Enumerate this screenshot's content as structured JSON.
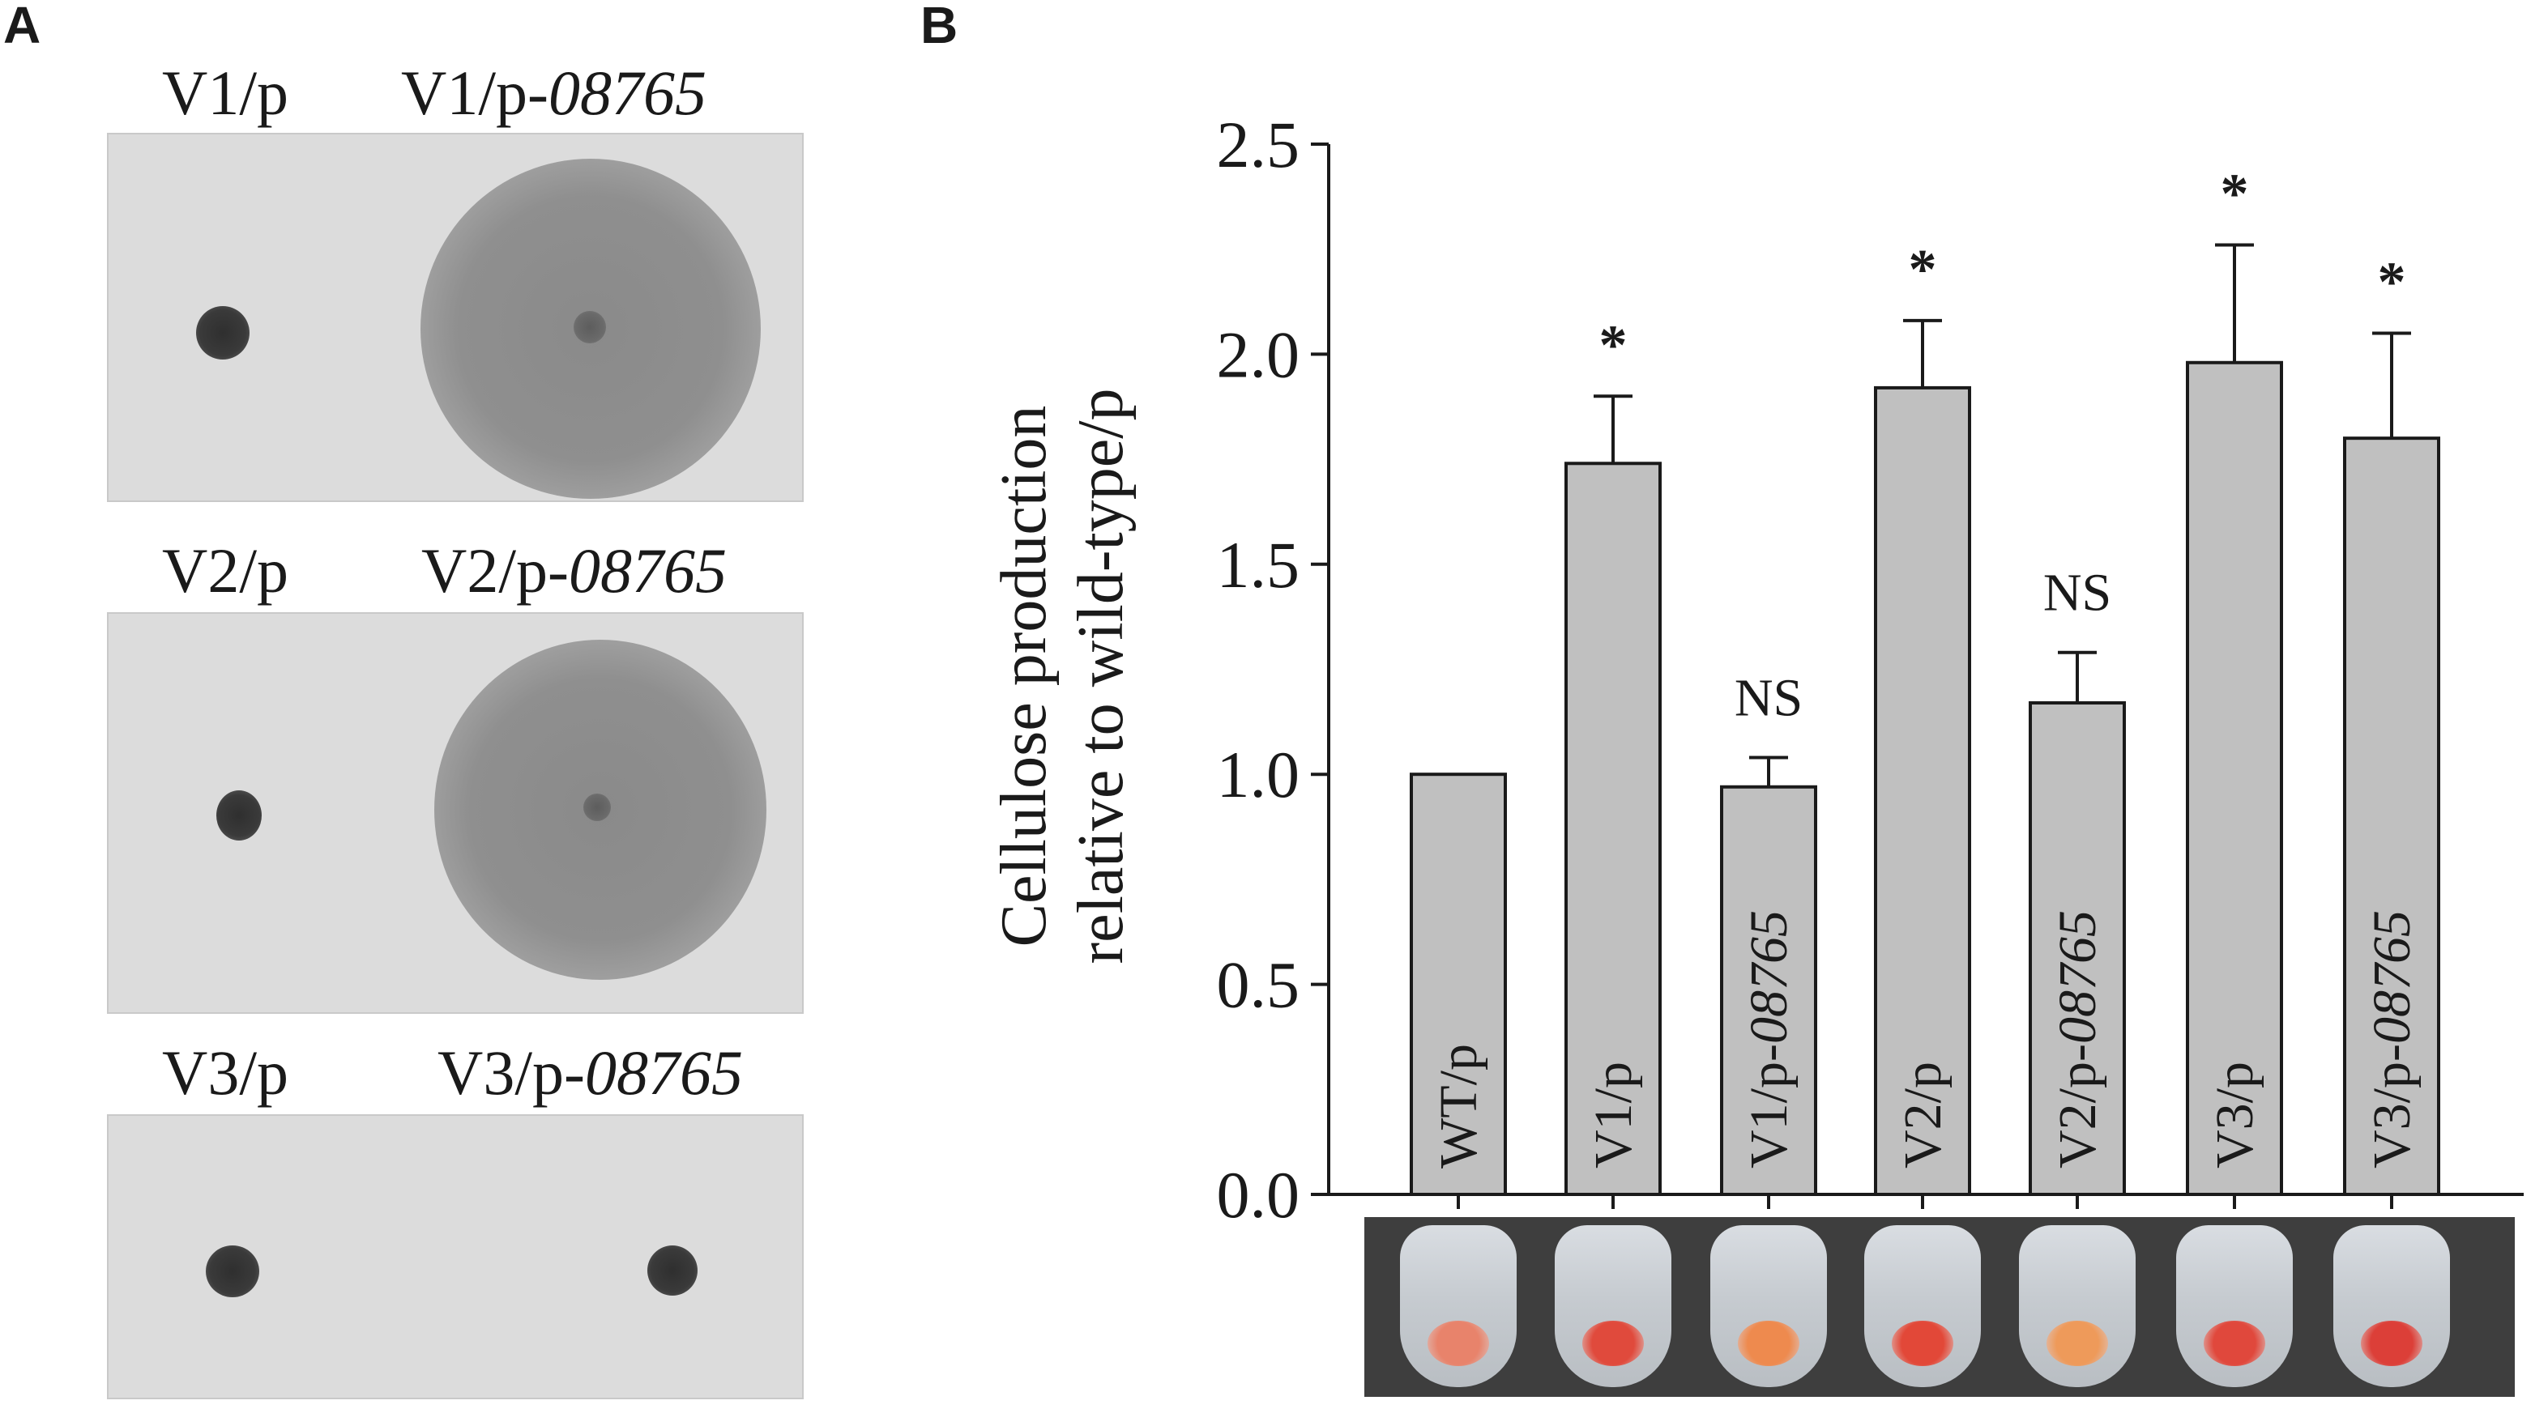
{
  "panel_a": {
    "letter": "A",
    "rows": [
      {
        "left_label": "V1/p",
        "right_prefix": "V1/p-",
        "right_italic": "08765"
      },
      {
        "left_label": "V2/p",
        "right_prefix": "V2/p-",
        "right_italic": "08765"
      },
      {
        "left_label": "V3/p",
        "right_prefix": "V3/p-",
        "right_italic": "08765"
      }
    ]
  },
  "panel_b": {
    "letter": "B"
  },
  "chart_data": {
    "type": "bar",
    "ylabel_line1": "Cellulose production",
    "ylabel_line2": "relative to wild-type/p",
    "ylim": [
      0,
      2.5
    ],
    "yticks": [
      "0.0",
      "0.5",
      "1.0",
      "1.5",
      "2.0",
      "2.5"
    ],
    "ytick_values": [
      0,
      0.5,
      1.0,
      1.5,
      2.0,
      2.5
    ],
    "categories": [
      {
        "prefix": "WT/p",
        "italic": ""
      },
      {
        "prefix": "V1/p",
        "italic": ""
      },
      {
        "prefix": "V1/p-",
        "italic": "08765"
      },
      {
        "prefix": "V2/p",
        "italic": ""
      },
      {
        "prefix": "V2/p-",
        "italic": "08765"
      },
      {
        "prefix": "V3/p",
        "italic": ""
      },
      {
        "prefix": "V3/p-",
        "italic": "08765"
      }
    ],
    "values": [
      1.0,
      1.74,
      0.97,
      1.92,
      1.17,
      1.98,
      1.8
    ],
    "error_upper": [
      0,
      0.16,
      0.07,
      0.16,
      0.12,
      0.28,
      0.25
    ],
    "annotations": [
      "",
      "*",
      "NS",
      "*",
      "NS",
      "*",
      "*"
    ],
    "bar_color": "#c0c0c0",
    "grid": false,
    "pellet_colors": [
      "#e8836b",
      "#e04a3c",
      "#ee8a4e",
      "#e24838",
      "#ee9a5a",
      "#e0483c",
      "#dc3f38"
    ]
  }
}
